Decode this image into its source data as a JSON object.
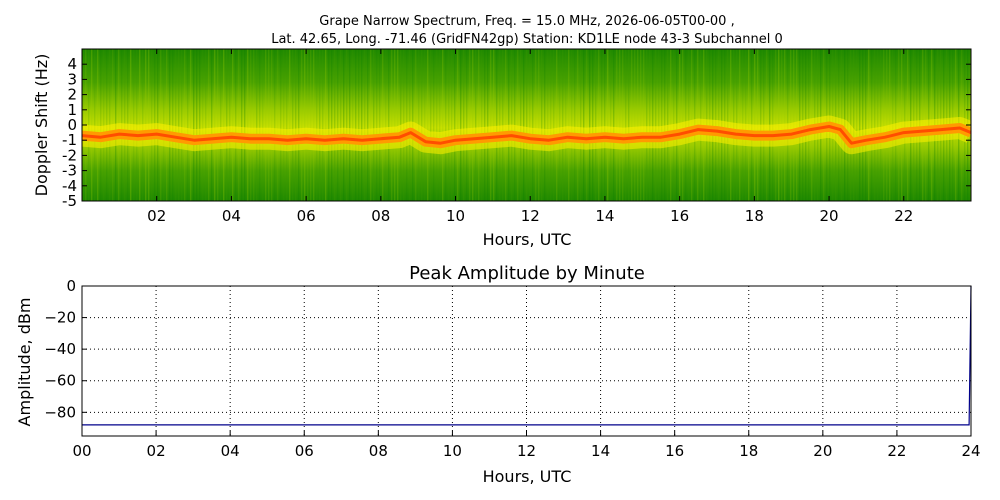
{
  "header": {
    "title_line1": "Grape Narrow Spectrum, Freq. = 15.0 MHz, 2026-06-05T00-00 ,",
    "title_line2": "Lat.  42.65, Long. -71.46 (GridFN42gp) Station: KD1LE node 43-3 Subchannel 0"
  },
  "chart_data": [
    {
      "type": "heatmap",
      "title": "",
      "xlabel": "Hours, UTC",
      "ylabel": "Doppler Shift (Hz)",
      "xlim": [
        0,
        23.8
      ],
      "ylim": [
        -5,
        5
      ],
      "x_ticks": [
        "02",
        "04",
        "06",
        "08",
        "10",
        "12",
        "14",
        "16",
        "18",
        "20",
        "22"
      ],
      "y_ticks": [
        "4",
        "3",
        "2",
        "1",
        "0",
        "-1",
        "-2",
        "-3",
        "-4",
        "-5"
      ],
      "colormap": [
        "#0b7f00",
        "#3e9a00",
        "#9ccc00",
        "#fff000",
        "#ff9b00",
        "#ff3a00"
      ],
      "ridge_hours": [
        0,
        0.5,
        1,
        1.5,
        2,
        2.5,
        3,
        3.5,
        4,
        4.5,
        5,
        5.5,
        6,
        6.5,
        7,
        7.5,
        8,
        8.5,
        8.8,
        9.2,
        9.6,
        10,
        10.5,
        11,
        11.5,
        12,
        12.5,
        13,
        13.5,
        14,
        14.5,
        15,
        15.5,
        16,
        16.5,
        17,
        17.5,
        18,
        18.5,
        19,
        19.5,
        20,
        20.3,
        20.6,
        21,
        21.5,
        22,
        22.5,
        23,
        23.5,
        23.8
      ],
      "ridge_doppler_hz": [
        -0.7,
        -0.8,
        -0.6,
        -0.7,
        -0.6,
        -0.8,
        -1.0,
        -0.9,
        -0.8,
        -0.9,
        -0.9,
        -1.0,
        -0.9,
        -1.0,
        -0.9,
        -1.0,
        -0.9,
        -0.8,
        -0.5,
        -1.1,
        -1.2,
        -1.0,
        -0.9,
        -0.8,
        -0.7,
        -0.9,
        -1.0,
        -0.8,
        -0.9,
        -0.8,
        -0.9,
        -0.8,
        -0.8,
        -0.6,
        -0.3,
        -0.4,
        -0.6,
        -0.7,
        -0.7,
        -0.6,
        -0.3,
        -0.1,
        -0.3,
        -1.2,
        -1.0,
        -0.8,
        -0.5,
        -0.4,
        -0.3,
        -0.2,
        -0.5
      ]
    },
    {
      "type": "line",
      "title": "Peak Amplitude by Minute",
      "xlabel": "Hours, UTC",
      "ylabel": "Amplitude, dBm",
      "xlim": [
        0,
        24
      ],
      "ylim": [
        -95,
        0
      ],
      "grid": true,
      "x_ticks": [
        "00",
        "02",
        "04",
        "06",
        "08",
        "10",
        "12",
        "14",
        "16",
        "18",
        "20",
        "22",
        "24"
      ],
      "y_ticks": [
        "0",
        "−20",
        "−40",
        "−60",
        "−80"
      ],
      "line_color": "#00008b",
      "x": [
        0,
        2,
        4,
        6,
        8,
        10,
        12,
        14,
        16,
        18,
        20,
        22,
        23.95,
        24
      ],
      "y": [
        -88,
        -88,
        -88,
        -88,
        -88,
        -88,
        -88,
        -88,
        -88,
        -88,
        -88,
        -88,
        -88,
        0
      ]
    }
  ]
}
